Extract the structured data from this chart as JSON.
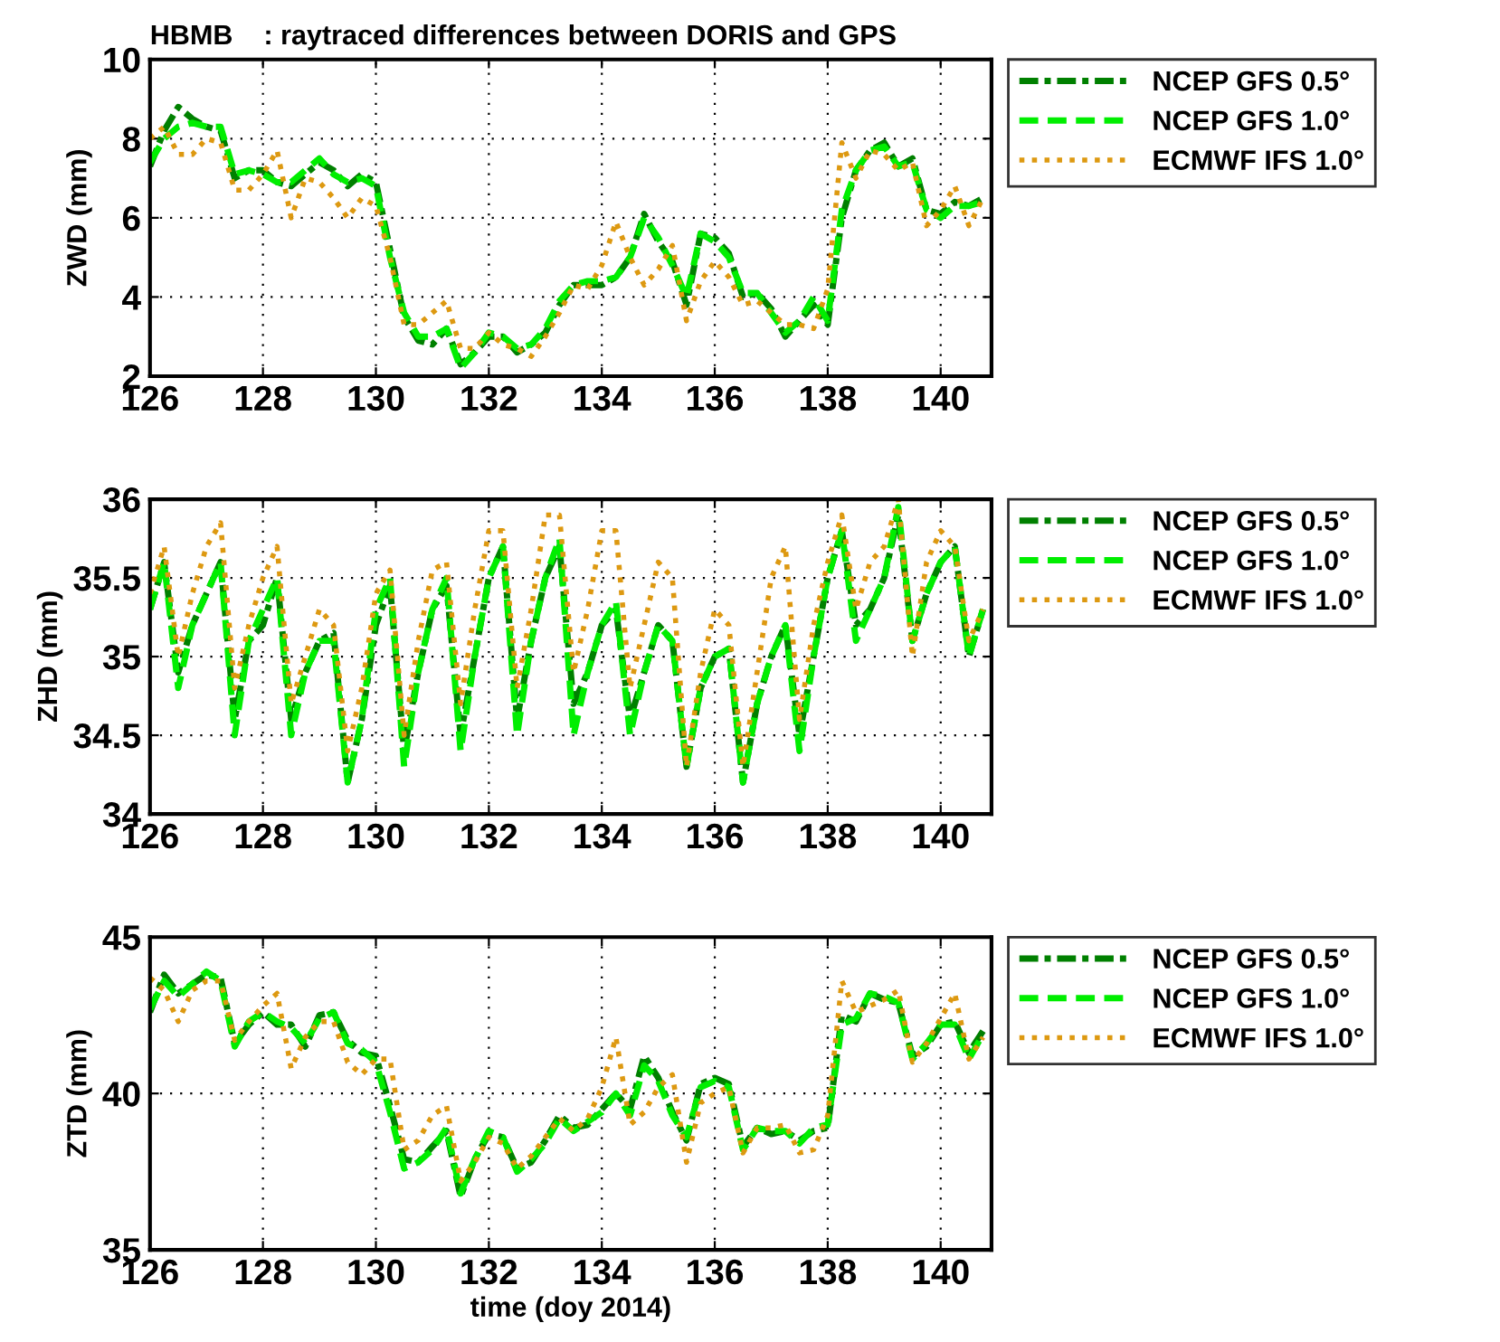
{
  "chart_data": [
    {
      "type": "line",
      "title": "HBMB    : raytraced differences between DORIS and GPS",
      "ylabel": "ZWD (mm)",
      "xlim": [
        126,
        140.9
      ],
      "xticks": [
        126,
        128,
        130,
        132,
        134,
        136,
        138,
        140
      ],
      "ylim": [
        2,
        10
      ],
      "yticks": [
        2,
        4,
        6,
        8,
        10
      ],
      "grid": true,
      "legend": "top right",
      "x": [
        126.0,
        126.25,
        126.5,
        126.75,
        127.0,
        127.25,
        127.5,
        127.75,
        128.0,
        128.25,
        128.5,
        128.75,
        129.0,
        129.25,
        129.5,
        129.75,
        130.0,
        130.25,
        130.5,
        130.75,
        131.0,
        131.25,
        131.5,
        131.75,
        132.0,
        132.25,
        132.5,
        132.75,
        133.0,
        133.25,
        133.5,
        133.75,
        134.0,
        134.25,
        134.5,
        134.75,
        135.0,
        135.25,
        135.5,
        135.75,
        136.0,
        136.25,
        136.5,
        136.75,
        137.0,
        137.25,
        137.5,
        137.75,
        138.0,
        138.25,
        138.5,
        138.75,
        139.0,
        139.25,
        139.5,
        139.75,
        140.0,
        140.25,
        140.5,
        140.75
      ],
      "series": [
        {
          "name": "NCEP GFS 0.5°",
          "color": "#008000",
          "line_style": "dashdot",
          "values": [
            7.3,
            8.2,
            8.8,
            8.5,
            8.3,
            8.2,
            7.0,
            7.2,
            7.2,
            6.9,
            6.8,
            7.1,
            7.4,
            7.2,
            6.8,
            7.1,
            6.9,
            5.2,
            3.5,
            2.9,
            2.8,
            3.2,
            2.3,
            2.6,
            3.0,
            3.0,
            2.6,
            2.8,
            3.1,
            3.8,
            4.3,
            4.3,
            4.3,
            4.5,
            5.0,
            6.1,
            5.4,
            4.9,
            3.8,
            5.6,
            5.5,
            5.1,
            4.0,
            4.1,
            3.7,
            3.0,
            3.4,
            3.8,
            3.3,
            6.0,
            7.2,
            7.7,
            7.9,
            7.3,
            7.5,
            6.2,
            6.1,
            6.4,
            6.3,
            6.5
          ]
        },
        {
          "name": "NCEP GFS 1.0°",
          "color": "#00ee00",
          "line_style": "dashed",
          "values": [
            7.4,
            8.0,
            8.3,
            8.4,
            8.3,
            8.3,
            7.1,
            7.2,
            7.1,
            6.9,
            6.9,
            7.2,
            7.5,
            7.1,
            6.9,
            7.0,
            6.8,
            5.0,
            3.6,
            3.0,
            3.0,
            3.2,
            2.2,
            2.6,
            3.1,
            3.0,
            2.7,
            2.8,
            3.2,
            3.9,
            4.3,
            4.4,
            4.4,
            4.5,
            5.0,
            6.0,
            5.5,
            4.8,
            4.0,
            5.6,
            5.4,
            5.0,
            4.1,
            4.1,
            3.6,
            3.1,
            3.4,
            4.0,
            3.4,
            6.2,
            7.2,
            7.7,
            7.8,
            7.3,
            7.4,
            6.2,
            6.0,
            6.3,
            6.3,
            6.4
          ]
        },
        {
          "name": "ECMWF IFS 1.0°",
          "color": "#dd9911",
          "line_style": "dotted",
          "values": [
            8.0,
            8.3,
            7.6,
            7.6,
            8.0,
            7.9,
            6.7,
            6.7,
            7.1,
            7.7,
            6.0,
            7.0,
            6.9,
            6.5,
            6.0,
            6.5,
            6.3,
            5.0,
            3.3,
            3.3,
            3.6,
            3.9,
            2.7,
            2.7,
            3.1,
            2.8,
            2.7,
            2.5,
            3.0,
            3.6,
            4.3,
            4.2,
            4.8,
            5.9,
            5.0,
            4.3,
            4.7,
            5.3,
            3.4,
            4.4,
            4.9,
            4.5,
            3.8,
            3.9,
            3.6,
            3.3,
            3.3,
            3.2,
            4.2,
            7.9,
            7.0,
            7.7,
            7.6,
            7.2,
            7.4,
            5.8,
            6.2,
            6.8,
            5.8,
            6.5
          ]
        }
      ]
    },
    {
      "type": "line",
      "ylabel": "ZHD (mm)",
      "xlim": [
        126,
        140.9
      ],
      "xticks": [
        126,
        128,
        130,
        132,
        134,
        136,
        138,
        140
      ],
      "ylim": [
        34,
        36
      ],
      "yticks": [
        34,
        34.5,
        35,
        35.5,
        36
      ],
      "grid": true,
      "legend": "top right",
      "x": [
        126.0,
        126.25,
        126.5,
        126.75,
        127.0,
        127.25,
        127.5,
        127.75,
        128.0,
        128.25,
        128.5,
        128.75,
        129.0,
        129.25,
        129.5,
        129.75,
        130.0,
        130.25,
        130.5,
        130.75,
        131.0,
        131.25,
        131.5,
        131.75,
        132.0,
        132.25,
        132.5,
        132.75,
        133.0,
        133.25,
        133.5,
        133.75,
        134.0,
        134.25,
        134.5,
        134.75,
        135.0,
        135.25,
        135.5,
        135.75,
        136.0,
        136.25,
        136.5,
        136.75,
        137.0,
        137.25,
        137.5,
        137.75,
        138.0,
        138.25,
        138.5,
        138.75,
        139.0,
        139.25,
        139.5,
        139.75,
        140.0,
        140.25,
        140.5,
        140.75
      ],
      "series": [
        {
          "name": "NCEP GFS 0.5°",
          "color": "#008000",
          "line_style": "dashdot",
          "values": [
            35.3,
            35.6,
            34.9,
            35.2,
            35.4,
            35.6,
            34.6,
            35.1,
            35.2,
            35.5,
            34.6,
            34.9,
            35.1,
            35.15,
            34.2,
            34.6,
            35.2,
            35.45,
            34.4,
            34.9,
            35.3,
            35.45,
            34.5,
            35.0,
            35.5,
            35.7,
            34.6,
            35.1,
            35.5,
            35.7,
            34.7,
            34.9,
            35.2,
            35.3,
            34.6,
            34.9,
            35.2,
            35.1,
            34.3,
            34.8,
            35.0,
            35.05,
            34.2,
            34.7,
            35.0,
            35.2,
            34.5,
            35.0,
            35.5,
            35.8,
            35.2,
            35.3,
            35.5,
            35.9,
            35.1,
            35.4,
            35.6,
            35.7,
            35.0,
            35.3
          ]
        },
        {
          "name": "NCEP GFS 1.0°",
          "color": "#00ee00",
          "line_style": "dashed",
          "values": [
            35.3,
            35.6,
            34.8,
            35.2,
            35.4,
            35.6,
            34.5,
            35.1,
            35.3,
            35.5,
            34.5,
            34.9,
            35.1,
            35.1,
            34.2,
            34.6,
            35.3,
            35.5,
            34.3,
            34.9,
            35.3,
            35.5,
            34.4,
            35.0,
            35.5,
            35.7,
            34.5,
            35.1,
            35.5,
            35.75,
            34.5,
            34.9,
            35.2,
            35.35,
            34.5,
            34.9,
            35.2,
            35.1,
            34.3,
            34.8,
            35.0,
            35.05,
            34.2,
            34.7,
            35.0,
            35.2,
            34.4,
            35.0,
            35.5,
            35.8,
            35.1,
            35.3,
            35.5,
            35.95,
            35.1,
            35.4,
            35.6,
            35.7,
            35.0,
            35.3
          ]
        },
        {
          "name": "ECMWF IFS 1.0°",
          "color": "#dd9911",
          "line_style": "dotted",
          "values": [
            35.4,
            35.7,
            35.0,
            35.4,
            35.7,
            35.85,
            34.8,
            35.2,
            35.5,
            35.7,
            34.7,
            35.0,
            35.3,
            35.2,
            34.4,
            34.8,
            35.4,
            35.55,
            34.5,
            35.1,
            35.55,
            35.6,
            34.7,
            35.3,
            35.8,
            35.8,
            34.8,
            35.3,
            35.9,
            35.9,
            34.9,
            35.3,
            35.8,
            35.8,
            34.8,
            35.2,
            35.6,
            35.5,
            34.3,
            34.9,
            35.3,
            35.2,
            34.3,
            34.9,
            35.5,
            35.7,
            34.6,
            35.2,
            35.6,
            35.9,
            35.3,
            35.6,
            35.7,
            36.0,
            35.0,
            35.6,
            35.8,
            35.7,
            35.1,
            35.3
          ]
        }
      ]
    },
    {
      "type": "line",
      "xlabel": "time (doy 2014)",
      "ylabel": "ZTD (mm)",
      "xlim": [
        126,
        140.9
      ],
      "xticks": [
        126,
        128,
        130,
        132,
        134,
        136,
        138,
        140
      ],
      "ylim": [
        35,
        45
      ],
      "yticks": [
        35,
        40,
        45
      ],
      "grid": true,
      "legend": "top right",
      "x": [
        126.0,
        126.25,
        126.5,
        126.75,
        127.0,
        127.25,
        127.5,
        127.75,
        128.0,
        128.25,
        128.5,
        128.75,
        129.0,
        129.25,
        129.5,
        129.75,
        130.0,
        130.25,
        130.5,
        130.75,
        131.0,
        131.25,
        131.5,
        131.75,
        132.0,
        132.25,
        132.5,
        132.75,
        133.0,
        133.25,
        133.5,
        133.75,
        134.0,
        134.25,
        134.5,
        134.75,
        135.0,
        135.25,
        135.5,
        135.75,
        136.0,
        136.25,
        136.5,
        136.75,
        137.0,
        137.25,
        137.5,
        137.75,
        138.0,
        138.25,
        138.5,
        138.75,
        139.0,
        139.25,
        139.5,
        139.75,
        140.0,
        140.25,
        140.5,
        140.75
      ],
      "series": [
        {
          "name": "NCEP GFS 0.5°",
          "color": "#008000",
          "line_style": "dashdot",
          "values": [
            42.6,
            43.8,
            43.2,
            43.5,
            43.8,
            43.7,
            41.6,
            42.2,
            42.6,
            42.2,
            42.2,
            41.5,
            42.5,
            42.6,
            41.7,
            41.3,
            41.2,
            39.6,
            37.9,
            37.8,
            38.3,
            38.8,
            36.7,
            37.9,
            38.7,
            38.6,
            37.6,
            37.8,
            38.5,
            39.3,
            38.9,
            39.0,
            39.5,
            40.0,
            39.5,
            41.2,
            40.5,
            39.4,
            38.5,
            40.3,
            40.5,
            40.3,
            38.3,
            38.9,
            38.7,
            38.8,
            38.5,
            38.8,
            38.9,
            42.5,
            42.3,
            43.2,
            43.0,
            42.9,
            41.2,
            41.5,
            42.2,
            42.3,
            41.3,
            42.0
          ]
        },
        {
          "name": "NCEP GFS 1.0°",
          "color": "#00ee00",
          "line_style": "dashed",
          "values": [
            42.7,
            43.6,
            43.1,
            43.5,
            43.9,
            43.6,
            41.5,
            42.3,
            42.6,
            42.3,
            42.1,
            41.6,
            42.4,
            42.6,
            41.6,
            41.4,
            41.0,
            39.4,
            37.6,
            37.8,
            38.2,
            38.9,
            36.8,
            37.9,
            38.8,
            38.6,
            37.5,
            37.9,
            38.4,
            39.2,
            38.8,
            39.1,
            39.4,
            40.0,
            39.3,
            40.9,
            40.4,
            39.3,
            38.6,
            40.2,
            40.4,
            40.2,
            38.2,
            38.9,
            38.8,
            38.8,
            38.4,
            38.9,
            39.0,
            42.2,
            42.4,
            43.2,
            43.1,
            42.9,
            41.1,
            41.6,
            42.2,
            42.2,
            41.1,
            41.9
          ]
        },
        {
          "name": "ECMWF IFS 1.0°",
          "color": "#dd9911",
          "line_style": "dotted",
          "values": [
            43.7,
            43.3,
            42.3,
            43.3,
            43.6,
            43.6,
            41.7,
            42.3,
            42.8,
            43.2,
            40.8,
            41.8,
            42.3,
            42.3,
            41.0,
            40.6,
            41.1,
            41.1,
            38.2,
            38.5,
            39.3,
            39.6,
            37.2,
            37.8,
            38.6,
            38.4,
            37.6,
            38.0,
            38.6,
            39.2,
            38.8,
            39.2,
            40.2,
            41.8,
            39.0,
            39.4,
            40.2,
            40.6,
            37.8,
            39.7,
            40.0,
            40.2,
            38.1,
            38.9,
            38.9,
            39.0,
            38.1,
            38.2,
            39.3,
            43.6,
            42.6,
            42.8,
            43.0,
            43.3,
            41.0,
            41.6,
            42.4,
            43.2,
            41.1,
            41.8
          ]
        }
      ]
    }
  ]
}
